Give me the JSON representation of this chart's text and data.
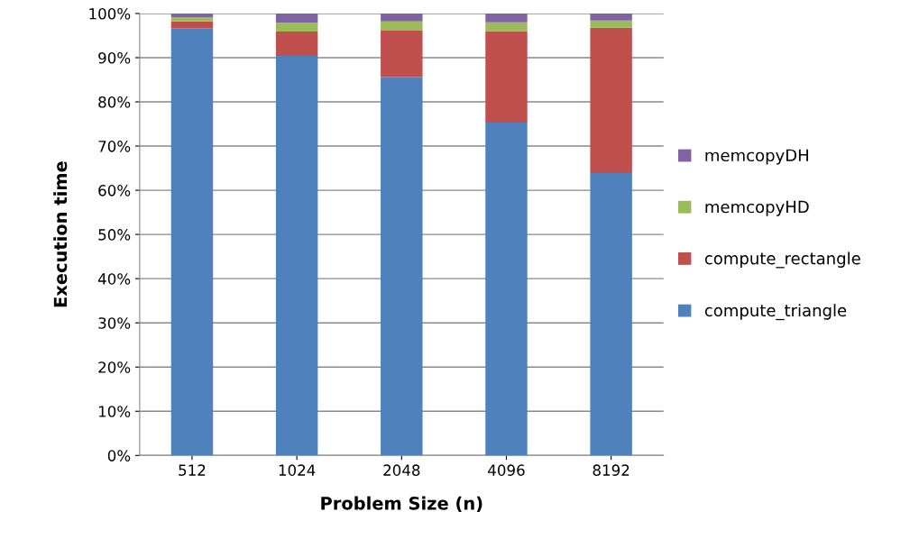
{
  "chart_data": {
    "type": "bar",
    "stacked": true,
    "xlabel": "Problem Size (n)",
    "ylabel": "Execution time",
    "categories": [
      "512",
      "1024",
      "2048",
      "4096",
      "8192"
    ],
    "series": [
      {
        "name": "compute_triangle",
        "color": "#4f81bd",
        "values": [
          96.7,
          90.4,
          85.6,
          75.3,
          63.9
        ]
      },
      {
        "name": "compute_rectangle",
        "color": "#c0504d",
        "values": [
          1.5,
          5.5,
          10.6,
          20.7,
          32.9
        ]
      },
      {
        "name": "memcopyHD",
        "color": "#9bbb59",
        "values": [
          0.9,
          2.0,
          2.0,
          2.0,
          1.6
        ]
      },
      {
        "name": "memcopyDH",
        "color": "#8064a2",
        "values": [
          0.9,
          2.1,
          1.8,
          2.0,
          1.6
        ]
      }
    ],
    "ylim": [
      0,
      100
    ],
    "yticks": [
      {
        "value": 0,
        "label": "0%"
      },
      {
        "value": 10,
        "label": "10%"
      },
      {
        "value": 20,
        "label": "20%"
      },
      {
        "value": 30,
        "label": "30%"
      },
      {
        "value": 40,
        "label": "40%"
      },
      {
        "value": 50,
        "label": "50%"
      },
      {
        "value": 60,
        "label": "60%"
      },
      {
        "value": 70,
        "label": "70%"
      },
      {
        "value": 80,
        "label": "80%"
      },
      {
        "value": 90,
        "label": "90%"
      },
      {
        "value": 100,
        "label": "100%"
      }
    ],
    "grid": "y",
    "legend": "right"
  }
}
